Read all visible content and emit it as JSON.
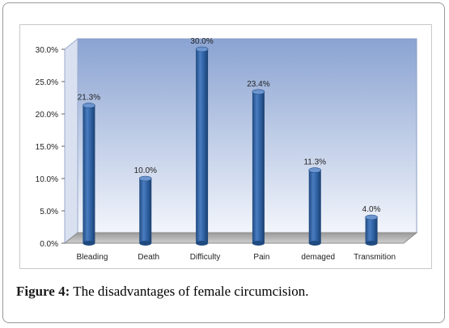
{
  "chart_data": {
    "type": "bar",
    "categories": [
      "Bleading",
      "Death",
      "Difficulty",
      "Pain",
      "demaged",
      "Transmition"
    ],
    "values": [
      21.3,
      10.0,
      30.0,
      23.4,
      11.3,
      4.0
    ],
    "data_labels": [
      "21.3%",
      "10.0%",
      "30.0%",
      "23.4%",
      "11.3%",
      "4.0%"
    ],
    "ylim": [
      0,
      30
    ],
    "yticks": [
      "0.0%",
      "5.0%",
      "10.0%",
      "15.0%",
      "20.0%",
      "25.0%",
      "30.0%"
    ],
    "title": "",
    "xlabel": "",
    "ylabel": "",
    "grid": false,
    "bar_color": "#2c5f9e",
    "background_color": "#c6d3ec"
  },
  "caption": {
    "label": "Figure 4:",
    "text": " The disadvantages of female circumcision."
  }
}
